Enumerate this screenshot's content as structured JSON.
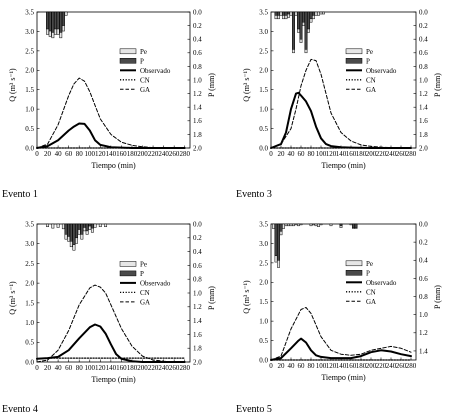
{
  "panels": [
    {
      "event_label": "Evento 1"
    },
    {
      "event_label": "Evento 3"
    },
    {
      "event_label": "Evento 4"
    },
    {
      "event_label": "Evento 5"
    }
  ],
  "chart_data": [
    {
      "type": "line",
      "xlabel": "Tiempo (min)",
      "ylabel": "Q (m³ s⁻¹)",
      "y2label": "P (mm)",
      "xlim": [
        0,
        290
      ],
      "xticks": [
        0,
        20,
        40,
        60,
        80,
        100,
        120,
        140,
        160,
        180,
        200,
        220,
        240,
        260,
        280
      ],
      "ylim": [
        0,
        3.5
      ],
      "yticks": [
        0.0,
        0.5,
        1.0,
        1.5,
        2.0,
        2.5,
        3.0,
        3.5
      ],
      "y2lim": [
        0,
        2.0
      ],
      "y2ticks": [
        0.0,
        0.2,
        0.4,
        0.6,
        0.8,
        1.0,
        1.2,
        1.4,
        1.6,
        1.8,
        2.0
      ],
      "legend": [
        "Pe",
        "P",
        "Observado",
        "CN",
        "GA"
      ],
      "legend_position": "right-middle",
      "hyetograph": {
        "x": [
          20,
          25,
          30,
          35,
          40,
          45,
          50,
          55
        ],
        "P": [
          0.33,
          0.36,
          0.38,
          0.33,
          0.33,
          0.38,
          0.28,
          0.05
        ],
        "Pe": [
          0.25,
          0.28,
          0.3,
          0.25,
          0.25,
          0.3,
          0.2,
          0.0
        ]
      },
      "series": [
        {
          "name": "Observado",
          "style": "solid",
          "x": [
            0,
            20,
            40,
            60,
            70,
            80,
            90,
            100,
            110,
            120,
            140,
            160,
            180,
            200,
            240,
            280
          ],
          "values": [
            0.0,
            0.05,
            0.2,
            0.45,
            0.55,
            0.63,
            0.62,
            0.45,
            0.2,
            0.08,
            0.02,
            0.01,
            0.0,
            0.0,
            0.0,
            0.0
          ]
        },
        {
          "name": "CN",
          "style": "dotted",
          "x": [
            0,
            40,
            60,
            80,
            100,
            120,
            140,
            160,
            180,
            200,
            220,
            240,
            260
          ],
          "values": [
            0.0,
            0.0,
            0.0,
            0.0,
            0.0,
            0.0,
            0.0,
            0.0,
            0.0,
            0.0,
            0.0,
            0.0,
            0.0
          ]
        },
        {
          "name": "GA",
          "style": "dashed",
          "x": [
            0,
            20,
            40,
            60,
            70,
            80,
            90,
            100,
            110,
            120,
            140,
            160,
            180,
            200,
            220,
            240,
            260
          ],
          "values": [
            0.0,
            0.1,
            0.6,
            1.35,
            1.65,
            1.8,
            1.72,
            1.45,
            1.1,
            0.75,
            0.35,
            0.15,
            0.07,
            0.03,
            0.01,
            0.0,
            0.0
          ]
        }
      ]
    },
    {
      "type": "line",
      "xlabel": "Tiempo (min)",
      "ylabel": "Q (m³ s⁻¹)",
      "y2label": "P (mm)",
      "xlim": [
        0,
        290
      ],
      "xticks": [
        0,
        20,
        40,
        60,
        80,
        100,
        120,
        140,
        160,
        180,
        200,
        220,
        240,
        260,
        280
      ],
      "ylim": [
        0,
        3.5
      ],
      "yticks": [
        0.0,
        0.5,
        1.0,
        1.5,
        2.0,
        2.5,
        3.0,
        3.5
      ],
      "y2lim": [
        0,
        2.0
      ],
      "y2ticks": [
        0.0,
        0.2,
        0.4,
        0.6,
        0.8,
        1.0,
        1.2,
        1.4,
        1.6,
        1.8,
        2.0
      ],
      "legend": [
        "Pe",
        "P",
        "Observado",
        "CN",
        "GA"
      ],
      "legend_position": "right-middle",
      "hyetograph": {
        "x": [
          10,
          15,
          20,
          25,
          30,
          35,
          40,
          45,
          50,
          55,
          60,
          65,
          70,
          75,
          80,
          85,
          90,
          95,
          100,
          105
        ],
        "P": [
          0.1,
          0.1,
          0.05,
          0.1,
          0.1,
          0.08,
          0.05,
          0.6,
          0.05,
          0.3,
          0.45,
          0.2,
          0.6,
          0.3,
          0.15,
          0.1,
          0.05,
          0.05,
          0.03,
          0.03
        ],
        "Pe": [
          0.05,
          0.05,
          0.0,
          0.05,
          0.05,
          0.03,
          0.0,
          0.55,
          0.0,
          0.25,
          0.4,
          0.15,
          0.55,
          0.25,
          0.1,
          0.05,
          0.0,
          0.0,
          0.0,
          0.0
        ]
      },
      "series": [
        {
          "name": "Observado",
          "style": "solid",
          "x": [
            0,
            20,
            30,
            40,
            50,
            55,
            60,
            70,
            80,
            90,
            100,
            110,
            120,
            140,
            160,
            200,
            240,
            280
          ],
          "values": [
            0.0,
            0.1,
            0.4,
            1.0,
            1.4,
            1.42,
            1.35,
            1.2,
            0.95,
            0.55,
            0.25,
            0.1,
            0.05,
            0.02,
            0.01,
            0.0,
            0.0,
            0.0
          ]
        },
        {
          "name": "CN",
          "style": "dotted",
          "x": [
            0,
            40,
            80,
            120,
            160,
            200,
            240,
            280
          ],
          "values": [
            0.0,
            0.0,
            0.0,
            0.0,
            0.0,
            0.0,
            0.0,
            0.0
          ]
        },
        {
          "name": "GA",
          "style": "dashed",
          "x": [
            0,
            20,
            40,
            50,
            60,
            70,
            80,
            90,
            100,
            110,
            120,
            140,
            160,
            180,
            200,
            220,
            240,
            260,
            280
          ],
          "values": [
            0.0,
            0.1,
            0.5,
            1.0,
            1.6,
            2.0,
            2.28,
            2.25,
            1.9,
            1.4,
            0.9,
            0.4,
            0.18,
            0.08,
            0.04,
            0.02,
            0.01,
            0.0,
            0.0
          ]
        }
      ]
    },
    {
      "type": "line",
      "xlabel": "Tiempo (min)",
      "ylabel": "Q (m³ s⁻¹)",
      "y2label": "P (mm)",
      "xlim": [
        0,
        290
      ],
      "xticks": [
        0,
        20,
        40,
        60,
        80,
        100,
        120,
        140,
        160,
        180,
        200,
        220,
        240,
        260,
        280
      ],
      "ylim": [
        0,
        3.5
      ],
      "yticks": [
        0.0,
        0.5,
        1.0,
        1.5,
        2.0,
        2.5,
        3.0,
        3.5
      ],
      "y2lim": [
        0,
        2.0
      ],
      "y2ticks": [
        0.0,
        0.2,
        0.4,
        0.6,
        0.8,
        1.0,
        1.2,
        1.4,
        1.6,
        1.8,
        2.0
      ],
      "legend": [
        "Pe",
        "P",
        "Observado",
        "CN",
        "GA"
      ],
      "legend_position": "right-middle",
      "hyetograph": {
        "x": [
          20,
          30,
          40,
          50,
          55,
          60,
          65,
          70,
          75,
          80,
          85,
          90,
          95,
          100,
          105,
          110,
          120,
          130
        ],
        "P": [
          0.04,
          0.06,
          0.05,
          0.07,
          0.22,
          0.25,
          0.33,
          0.38,
          0.28,
          0.15,
          0.22,
          0.1,
          0.15,
          0.08,
          0.12,
          0.05,
          0.04,
          0.04
        ],
        "Pe": [
          0.0,
          0.0,
          0.0,
          0.0,
          0.15,
          0.18,
          0.25,
          0.3,
          0.2,
          0.08,
          0.15,
          0.05,
          0.1,
          0.03,
          0.06,
          0.0,
          0.0,
          0.0
        ]
      },
      "series": [
        {
          "name": "Observado",
          "style": "solid",
          "x": [
            0,
            20,
            40,
            60,
            80,
            100,
            110,
            120,
            130,
            140,
            150,
            160,
            180,
            200,
            240,
            280
          ],
          "values": [
            0.08,
            0.1,
            0.13,
            0.3,
            0.6,
            0.88,
            0.95,
            0.9,
            0.72,
            0.45,
            0.2,
            0.08,
            0.02,
            0.0,
            0.0,
            0.0
          ]
        },
        {
          "name": "CN",
          "style": "dotted",
          "x": [
            0,
            10,
            20,
            40,
            60,
            80,
            100,
            120,
            140,
            160,
            200,
            240,
            280
          ],
          "values": [
            0.08,
            0.09,
            0.1,
            0.1,
            0.1,
            0.1,
            0.1,
            0.1,
            0.1,
            0.1,
            0.1,
            0.1,
            0.1
          ]
        },
        {
          "name": "GA",
          "style": "dashed",
          "x": [
            0,
            20,
            40,
            60,
            80,
            100,
            110,
            120,
            130,
            140,
            160,
            180,
            200,
            220,
            240,
            260,
            280
          ],
          "values": [
            0.0,
            0.05,
            0.3,
            0.8,
            1.45,
            1.88,
            1.95,
            1.9,
            1.75,
            1.45,
            0.85,
            0.4,
            0.15,
            0.05,
            0.02,
            0.0,
            0.0
          ]
        }
      ]
    },
    {
      "type": "line",
      "xlabel": "Tiempo (min)",
      "ylabel": "Q (m³ s⁻¹)",
      "y2label": "P (mm)",
      "xlim": [
        0,
        290
      ],
      "xticks": [
        0,
        20,
        40,
        60,
        80,
        100,
        120,
        140,
        160,
        180,
        200,
        220,
        240,
        260,
        280
      ],
      "ylim": [
        0,
        3.5
      ],
      "yticks": [
        0.0,
        0.5,
        1.0,
        1.5,
        2.0,
        2.5,
        3.0,
        3.5
      ],
      "y2lim": [
        0,
        1.5
      ],
      "y2ticks": [
        0.0,
        0.2,
        0.4,
        0.6,
        0.8,
        1.0,
        1.2,
        1.4
      ],
      "legend": [
        "Pe",
        "P",
        "Observado",
        "CN",
        "GA"
      ],
      "legend_position": "right-middle",
      "hyetograph": {
        "x": [
          5,
          10,
          15,
          20,
          25,
          30,
          35,
          40,
          45,
          50,
          55,
          60,
          80,
          85,
          90,
          95,
          100,
          120,
          140,
          160,
          165,
          170
        ],
        "P": [
          0.05,
          0.42,
          0.48,
          0.12,
          0.05,
          0.02,
          0.02,
          0.02,
          0.02,
          0.01,
          0.02,
          0.01,
          0.02,
          0.01,
          0.02,
          0.03,
          0.01,
          0.02,
          0.04,
          0.01,
          0.05,
          0.05
        ],
        "Pe": [
          0.0,
          0.35,
          0.4,
          0.08,
          0.0,
          0.0,
          0.0,
          0.0,
          0.0,
          0.0,
          0.0,
          0.0,
          0.0,
          0.0,
          0.0,
          0.0,
          0.0,
          0.0,
          0.02,
          0.0,
          0.04,
          0.04
        ]
      },
      "series": [
        {
          "name": "Observado",
          "style": "solid",
          "x": [
            0,
            20,
            40,
            55,
            60,
            70,
            80,
            90,
            100,
            120,
            140,
            160,
            180,
            200,
            220,
            240,
            260,
            280
          ],
          "values": [
            0.0,
            0.05,
            0.3,
            0.5,
            0.55,
            0.45,
            0.25,
            0.12,
            0.08,
            0.05,
            0.05,
            0.05,
            0.1,
            0.2,
            0.25,
            0.22,
            0.15,
            0.1
          ]
        },
        {
          "name": "CN",
          "style": "dotted",
          "x": [
            0,
            20,
            40,
            60,
            80,
            100,
            120,
            140,
            160,
            200,
            240,
            280
          ],
          "values": [
            0.0,
            0.0,
            0.0,
            0.0,
            0.0,
            0.0,
            0.0,
            0.0,
            0.0,
            0.0,
            0.0,
            0.0
          ]
        },
        {
          "name": "GA",
          "style": "dashed",
          "x": [
            0,
            20,
            40,
            60,
            70,
            80,
            90,
            100,
            120,
            140,
            160,
            180,
            200,
            220,
            240,
            260,
            280
          ],
          "values": [
            0.0,
            0.1,
            0.8,
            1.3,
            1.35,
            1.2,
            0.9,
            0.6,
            0.25,
            0.15,
            0.12,
            0.15,
            0.25,
            0.3,
            0.35,
            0.3,
            0.2
          ]
        }
      ]
    }
  ]
}
